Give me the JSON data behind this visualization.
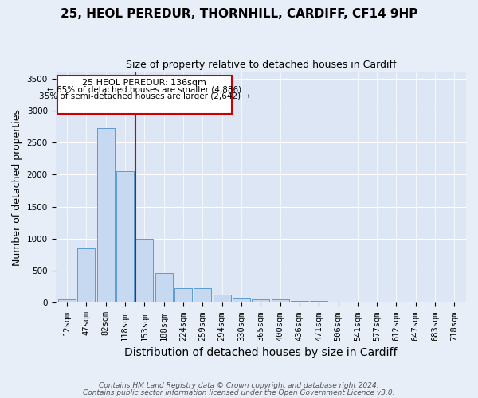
{
  "title": "25, HEOL PEREDUR, THORNHILL, CARDIFF, CF14 9HP",
  "subtitle": "Size of property relative to detached houses in Cardiff",
  "xlabel": "Distribution of detached houses by size in Cardiff",
  "ylabel": "Number of detached properties",
  "footer_line1": "Contains HM Land Registry data © Crown copyright and database right 2024.",
  "footer_line2": "Contains public sector information licensed under the Open Government Licence v3.0.",
  "annotation_line1": "25 HEOL PEREDUR: 136sqm",
  "annotation_line2": "← 65% of detached houses are smaller (4,886)",
  "annotation_line3": "35% of semi-detached houses are larger (2,642) →",
  "bar_labels": [
    "12sqm",
    "47sqm",
    "82sqm",
    "118sqm",
    "153sqm",
    "188sqm",
    "224sqm",
    "259sqm",
    "294sqm",
    "330sqm",
    "365sqm",
    "400sqm",
    "436sqm",
    "471sqm",
    "506sqm",
    "541sqm",
    "577sqm",
    "612sqm",
    "647sqm",
    "683sqm",
    "718sqm"
  ],
  "bar_values": [
    60,
    850,
    2730,
    2060,
    1005,
    460,
    230,
    225,
    135,
    65,
    50,
    50,
    30,
    25,
    0,
    0,
    0,
    0,
    0,
    0,
    0
  ],
  "bar_color": "#c6d9f1",
  "bar_edge_color": "#5b9bd5",
  "ylim": [
    0,
    3600
  ],
  "yticks": [
    0,
    500,
    1000,
    1500,
    2000,
    2500,
    3000,
    3500
  ],
  "bg_color": "#e8eef7",
  "plot_bg_color": "#dce6f5",
  "grid_color": "#ffffff",
  "annotation_box_color": "#cc0000",
  "title_fontsize": 11,
  "subtitle_fontsize": 9,
  "axis_label_fontsize": 9,
  "tick_fontsize": 7.5,
  "footer_fontsize": 6.5
}
